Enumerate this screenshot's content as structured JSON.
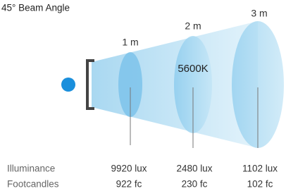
{
  "title": "45° Beam Angle",
  "color_temperature": "5600K",
  "row_labels": {
    "illuminance": "Illuminance",
    "footcandles": "Footcandles"
  },
  "distances": [
    {
      "label": "1 m",
      "illuminance": "9920 lux",
      "footcandles": "922 fc"
    },
    {
      "label": "2 m",
      "illuminance": "2480 lux",
      "footcandles": "230 fc"
    },
    {
      "label": "3 m",
      "illuminance": "1102 lux",
      "footcandles": "102 fc"
    }
  ]
}
